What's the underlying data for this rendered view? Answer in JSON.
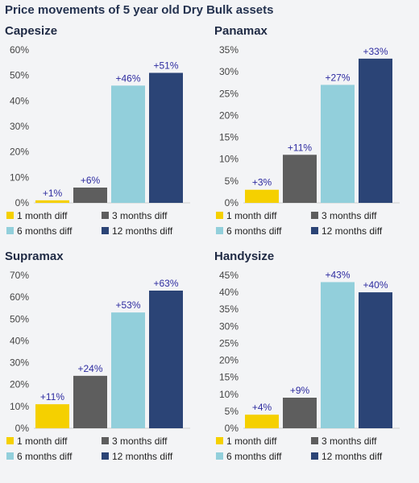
{
  "page_title": "Price movements of 5 year old Dry Bulk assets",
  "colors": {
    "1 month diff": "#f5d000",
    "3 months diff": "#5e5e5e",
    "6 months diff": "#92cfdb",
    "12 months diff": "#2b4476"
  },
  "legend": [
    "1 month diff",
    "3 months diff",
    "6 months diff",
    "12 months diff"
  ],
  "chart_data": [
    {
      "type": "bar",
      "title": "Capesize",
      "categories": [
        "1 month diff",
        "3 months diff",
        "6 months diff",
        "12 months diff"
      ],
      "values": [
        1,
        6,
        46,
        51
      ],
      "labels": [
        "+1%",
        "+6%",
        "+46%",
        "+51%"
      ],
      "yticks": [
        "0%",
        "10%",
        "20%",
        "30%",
        "40%",
        "50%",
        "60%"
      ],
      "ylim": [
        0,
        60
      ],
      "legend_position": "bottom",
      "grid": false
    },
    {
      "type": "bar",
      "title": "Panamax",
      "categories": [
        "1 month diff",
        "3 months diff",
        "6 months diff",
        "12 months diff"
      ],
      "values": [
        3,
        11,
        27,
        33
      ],
      "labels": [
        "+3%",
        "+11%",
        "+27%",
        "+33%"
      ],
      "yticks": [
        "0%",
        "5%",
        "10%",
        "15%",
        "20%",
        "25%",
        "30%",
        "35%"
      ],
      "ylim": [
        0,
        35
      ],
      "legend_position": "bottom",
      "grid": false
    },
    {
      "type": "bar",
      "title": "Supramax",
      "categories": [
        "1 month diff",
        "3 months diff",
        "6 months diff",
        "12 months diff"
      ],
      "values": [
        11,
        24,
        53,
        63
      ],
      "labels": [
        "+11%",
        "+24%",
        "+53%",
        "+63%"
      ],
      "yticks": [
        "0%",
        "10%",
        "20%",
        "30%",
        "40%",
        "50%",
        "60%",
        "70%"
      ],
      "ylim": [
        0,
        70
      ],
      "legend_position": "bottom",
      "grid": false
    },
    {
      "type": "bar",
      "title": "Handysize",
      "categories": [
        "1 month diff",
        "3 months diff",
        "6 months diff",
        "12 months diff"
      ],
      "values": [
        4,
        9,
        43,
        40
      ],
      "labels": [
        "+4%",
        "+9%",
        "+43%",
        "+40%"
      ],
      "yticks": [
        "0%",
        "5%",
        "10%",
        "15%",
        "20%",
        "25%",
        "30%",
        "35%",
        "40%",
        "45%"
      ],
      "ylim": [
        0,
        45
      ],
      "legend_position": "bottom",
      "grid": false
    }
  ]
}
